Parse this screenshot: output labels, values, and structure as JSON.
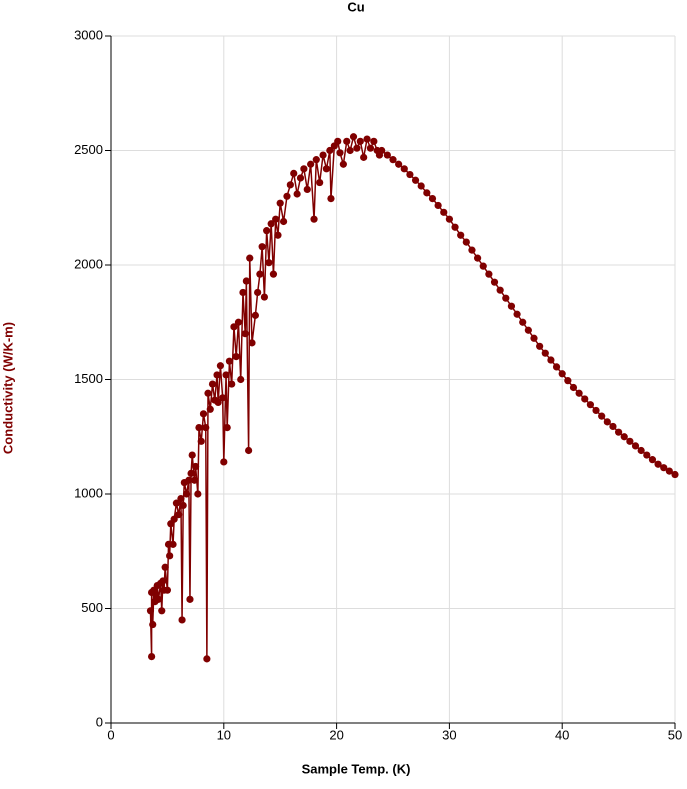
{
  "chart_data": {
    "type": "line",
    "title": "Cu",
    "xlabel": "Sample Temp. (K)",
    "ylabel": "Conductivity (W/K-m)",
    "ylabel_color": "#800000",
    "xlim": [
      0,
      50
    ],
    "xticks": [
      0,
      10,
      20,
      30,
      40,
      50
    ],
    "ylim": [
      0,
      3000
    ],
    "yticks": [
      0,
      500,
      1000,
      1500,
      2000,
      2500,
      3000
    ],
    "grid": true,
    "markers": true,
    "x": [
      3.5,
      3.6,
      3.6,
      3.7,
      3.8,
      3.9,
      4.0,
      4.1,
      4.2,
      4.4,
      4.5,
      4.6,
      4.7,
      4.8,
      5.0,
      5.1,
      5.2,
      5.3,
      5.5,
      5.6,
      5.8,
      6.0,
      6.2,
      6.3,
      6.4,
      6.5,
      6.7,
      6.9,
      7.0,
      7.1,
      7.2,
      7.4,
      7.5,
      7.7,
      7.8,
      8.0,
      8.2,
      8.4,
      8.5,
      8.6,
      8.8,
      9.0,
      9.2,
      9.4,
      9.5,
      9.7,
      9.9,
      10.0,
      10.2,
      10.3,
      10.5,
      10.7,
      10.9,
      11.1,
      11.3,
      11.5,
      11.7,
      11.9,
      12.0,
      12.2,
      12.3,
      12.5,
      12.8,
      13.0,
      13.2,
      13.4,
      13.6,
      13.8,
      14.0,
      14.2,
      14.4,
      14.6,
      14.8,
      15.0,
      15.3,
      15.6,
      15.9,
      16.2,
      16.5,
      16.8,
      17.1,
      17.4,
      17.7,
      18.0,
      18.2,
      18.5,
      18.8,
      19.1,
      19.4,
      19.5,
      19.8,
      20.1,
      20.3,
      20.6,
      20.9,
      21.2,
      21.5,
      21.8,
      22.1,
      22.4,
      22.7,
      23.0,
      23.3,
      23.6,
      23.8,
      24,
      24.5,
      25,
      25.5,
      26,
      26.5,
      27,
      27.5,
      28,
      28.5,
      29,
      29.5,
      30,
      30.5,
      31,
      31.5,
      32,
      32.5,
      33,
      33.5,
      34,
      34.5,
      35,
      35.5,
      36,
      36.5,
      37,
      37.5,
      38,
      38.5,
      39,
      39.5,
      40,
      40.5,
      41,
      41.5,
      42,
      42.5,
      43,
      43.5,
      44,
      44.5,
      45,
      45.5,
      46,
      46.5,
      47,
      47.5,
      48,
      48.5,
      49,
      49.5,
      50
    ],
    "series": [
      {
        "color": "#800000",
        "values": [
          490,
          290,
          570,
          430,
          580,
          530,
          560,
          600,
          540,
          610,
          490,
          620,
          580,
          680,
          580,
          780,
          730,
          870,
          780,
          890,
          960,
          910,
          980,
          450,
          950,
          1050,
          1000,
          1060,
          540,
          1090,
          1170,
          1060,
          1120,
          1000,
          1290,
          1230,
          1350,
          1290,
          280,
          1440,
          1370,
          1480,
          1410,
          1520,
          1400,
          1560,
          1420,
          1140,
          1520,
          1290,
          1580,
          1480,
          1730,
          1600,
          1750,
          1500,
          1880,
          1700,
          1930,
          1190,
          2030,
          1660,
          1780,
          1880,
          1960,
          2080,
          1860,
          2150,
          2010,
          2180,
          1960,
          2200,
          2130,
          2270,
          2190,
          2300,
          2350,
          2400,
          2310,
          2380,
          2420,
          2330,
          2440,
          2200,
          2460,
          2360,
          2480,
          2420,
          2500,
          2290,
          2520,
          2540,
          2490,
          2440,
          2540,
          2500,
          2560,
          2510,
          2540,
          2470,
          2550,
          2510,
          2540,
          2500,
          2480,
          2500,
          2480,
          2460,
          2440,
          2420,
          2395,
          2370,
          2345,
          2315,
          2290,
          2260,
          2230,
          2200,
          2165,
          2130,
          2100,
          2065,
          2030,
          1995,
          1960,
          1925,
          1890,
          1855,
          1820,
          1785,
          1750,
          1715,
          1680,
          1645,
          1615,
          1585,
          1555,
          1525,
          1495,
          1465,
          1440,
          1415,
          1390,
          1365,
          1340,
          1315,
          1295,
          1270,
          1250,
          1230,
          1210,
          1190,
          1170,
          1150,
          1130,
          1115,
          1100,
          1085
        ]
      }
    ]
  }
}
